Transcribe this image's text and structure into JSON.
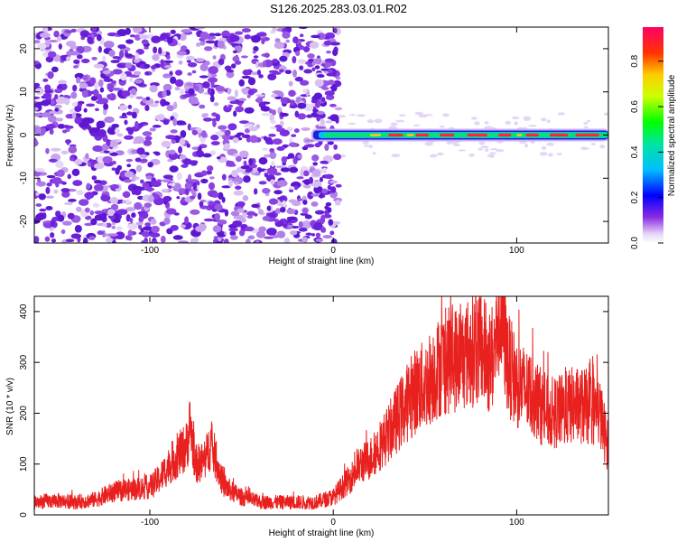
{
  "title": "S126.2025.283.03.01.R02",
  "colors": {
    "line": "#e8201e",
    "axis": "#000000",
    "background": "#ffffff"
  },
  "chart_data": [
    {
      "type": "heatmap",
      "name": "spectrogram",
      "xlabel": "Height of straight line (km)",
      "ylabel": "Frequency (Hz)",
      "xlim": [
        -163,
        150
      ],
      "ylim": [
        -25,
        25
      ],
      "xticks": [
        -100,
        0,
        100
      ],
      "xtick_labels": [
        "-100",
        "0",
        "100"
      ],
      "yticks": [
        20,
        10,
        0,
        -10,
        -20
      ],
      "ytick_labels": [
        "20",
        "10",
        "0",
        "-10",
        "-20"
      ],
      "colorbar": {
        "label": "Normalized spectral amplitude",
        "range": [
          0,
          0.95
        ],
        "ticks": [
          0,
          0.2,
          0.4,
          0.6,
          0.8
        ],
        "tick_labels": [
          "0.0",
          "0.2",
          "0.4",
          "0.6",
          "0.8"
        ]
      },
      "regions": [
        {
          "description": "noise",
          "x_range": [
            -163,
            3
          ],
          "freq_range": [
            -25,
            25
          ],
          "amplitude_range": [
            0.0,
            0.12
          ]
        },
        {
          "description": "carrier",
          "x_range": [
            -12,
            150
          ],
          "center_freq": 0,
          "amplitude_range": [
            0.2,
            0.95
          ]
        }
      ]
    },
    {
      "type": "line",
      "name": "snr",
      "xlabel": "Height of straight line (km)",
      "ylabel": "SNR (10 * v/v)",
      "xlim": [
        -163,
        150
      ],
      "ylim": [
        0,
        430
      ],
      "xticks": [
        -100,
        0,
        100
      ],
      "xtick_labels": [
        "-100",
        "0",
        "100"
      ],
      "yticks": [
        0,
        100,
        200,
        300,
        400
      ],
      "ytick_labels": [
        "0",
        "100",
        "200",
        "300",
        "400"
      ],
      "x": [
        -163,
        -150,
        -140,
        -130,
        -120,
        -110,
        -100,
        -95,
        -90,
        -85,
        -80,
        -78,
        -75,
        -70,
        -67,
        -65,
        -60,
        -55,
        -50,
        -40,
        -30,
        -20,
        -10,
        0,
        5,
        10,
        15,
        20,
        25,
        30,
        35,
        40,
        45,
        50,
        55,
        60,
        65,
        70,
        75,
        80,
        85,
        88,
        90,
        92,
        95,
        100,
        105,
        110,
        115,
        120,
        125,
        130,
        135,
        140,
        145,
        150
      ],
      "values": [
        25,
        28,
        25,
        30,
        45,
        50,
        55,
        70,
        95,
        115,
        135,
        175,
        100,
        105,
        140,
        120,
        60,
        45,
        35,
        25,
        25,
        25,
        25,
        35,
        55,
        75,
        100,
        110,
        135,
        160,
        190,
        220,
        245,
        255,
        280,
        300,
        305,
        310,
        320,
        335,
        300,
        320,
        400,
        390,
        300,
        260,
        245,
        230,
        205,
        200,
        205,
        215,
        215,
        210,
        205,
        130
      ]
    }
  ]
}
